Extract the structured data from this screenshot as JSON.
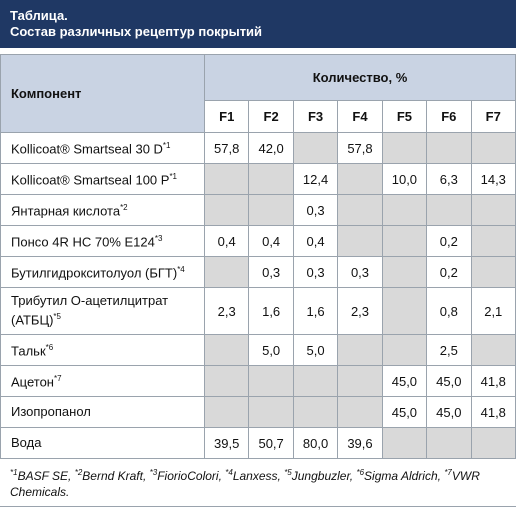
{
  "header": {
    "label": "Таблица.",
    "title": "Состав различных рецептур покрытий"
  },
  "table": {
    "component_header": "Компонент",
    "quantity_header": "Количество, %",
    "columns": [
      "F1",
      "F2",
      "F3",
      "F4",
      "F5",
      "F6",
      "F7"
    ],
    "rows": [
      {
        "label": "Kollicoat® Smartseal 30 D",
        "note": "*1",
        "values": [
          "57,8",
          "42,0",
          null,
          "57,8",
          null,
          null,
          null
        ]
      },
      {
        "label": "Kollicoat® Smartseal 100 P",
        "note": "*1",
        "values": [
          null,
          null,
          "12,4",
          null,
          "10,0",
          "6,3",
          "14,3"
        ]
      },
      {
        "label": "Янтарная кислота",
        "note": "*2",
        "values": [
          null,
          null,
          "0,3",
          null,
          null,
          null,
          null
        ]
      },
      {
        "label": "Понсо 4R HC 70% E124",
        "note": "*3",
        "values": [
          "0,4",
          "0,4",
          "0,4",
          null,
          null,
          "0,2",
          null
        ]
      },
      {
        "label": "Бутилгидрокситолуол (БГТ)",
        "note": "*4",
        "values": [
          null,
          "0,3",
          "0,3",
          "0,3",
          null,
          "0,2",
          null
        ]
      },
      {
        "label": "Трибутил O-ацетилцитрат (АТБЦ)",
        "note": "*5",
        "values": [
          "2,3",
          "1,6",
          "1,6",
          "2,3",
          null,
          "0,8",
          "2,1"
        ]
      },
      {
        "label": "Тальк",
        "note": "*6",
        "values": [
          null,
          "5,0",
          "5,0",
          null,
          null,
          "2,5",
          null
        ]
      },
      {
        "label": "Ацетон",
        "note": "*7",
        "values": [
          null,
          null,
          null,
          null,
          "45,0",
          "45,0",
          "41,8"
        ]
      },
      {
        "label": "Изопропанол",
        "note": null,
        "values": [
          null,
          null,
          null,
          null,
          "45,0",
          "45,0",
          "41,8"
        ]
      },
      {
        "label": "Вода",
        "note": null,
        "values": [
          "39,5",
          "50,7",
          "80,0",
          "39,6",
          null,
          null,
          null
        ]
      }
    ]
  },
  "footnotes": [
    {
      "mark": "*1",
      "name": "BASF SE,"
    },
    {
      "mark": "*2",
      "name": "Bernd Kraft,"
    },
    {
      "mark": "*3",
      "name": "FiorioColori,"
    },
    {
      "mark": "*4",
      "name": "Lanxess,"
    },
    {
      "mark": "*5",
      "name": "Jungbuzler,"
    },
    {
      "mark": "*6",
      "name": "Sigma Aldrich,"
    },
    {
      "mark": "*7",
      "name": "VWR Chemicals."
    }
  ]
}
